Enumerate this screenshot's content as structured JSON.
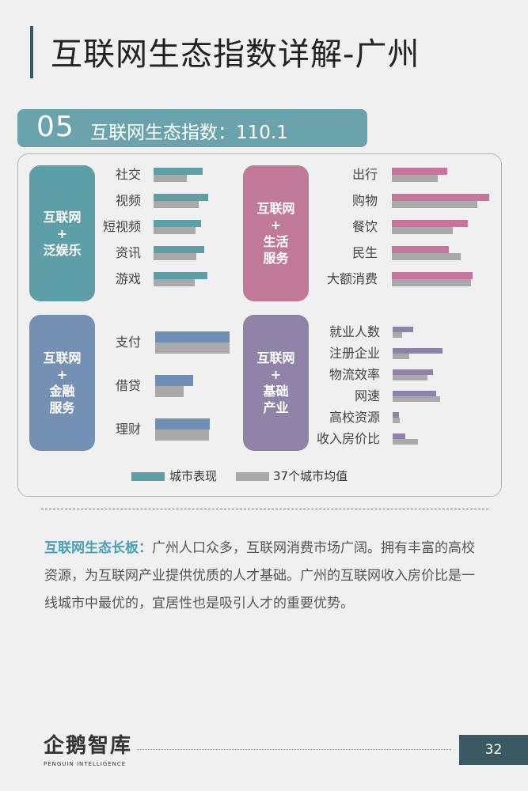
{
  "page_title": "互联网生态指数详解-广州",
  "banner": {
    "number": "05",
    "text": "互联网生态指数：110.1"
  },
  "colors": {
    "city": "#5e9ea6",
    "average": "#a9a9a9",
    "ent_bar": "#5e9ea6",
    "life_bar": "#c7759a",
    "fin_bar": "#6e8fb3",
    "infra_bar": "#8c82aa"
  },
  "chart_data": [
    {
      "type": "bar",
      "orientation": "horizontal",
      "group": [
        "互联网",
        "+",
        "泛娱乐"
      ],
      "categories": [
        "社交",
        "视频",
        "短视频",
        "资讯",
        "游戏"
      ],
      "series": [
        {
          "name": "城市表现",
          "values": [
            62,
            69,
            60,
            64,
            68
          ]
        },
        {
          "name": "37个城市均值",
          "values": [
            42,
            57,
            53,
            54,
            52
          ]
        }
      ]
    },
    {
      "type": "bar",
      "orientation": "horizontal",
      "group": [
        "互联网",
        "+",
        "生活",
        "服务"
      ],
      "categories": [
        "出行",
        "购物",
        "餐饮",
        "民生",
        "大额消费"
      ],
      "series": [
        {
          "name": "城市表现",
          "values": [
            70,
            123,
            96,
            72,
            102
          ]
        },
        {
          "name": "37个城市均值",
          "values": [
            58,
            108,
            77,
            87,
            100
          ]
        }
      ]
    },
    {
      "type": "bar",
      "orientation": "horizontal",
      "group": [
        "互联网",
        "+",
        "金融",
        "服务"
      ],
      "categories": [
        "支付",
        "借贷",
        "理财"
      ],
      "series": [
        {
          "name": "城市表现",
          "values": [
            94,
            48,
            69
          ]
        },
        {
          "name": "37个城市均值",
          "values": [
            94,
            36,
            68
          ]
        }
      ]
    },
    {
      "type": "bar",
      "orientation": "horizontal",
      "group": [
        "互联网",
        "+",
        "基础",
        "产业"
      ],
      "categories": [
        "就业人数",
        "注册企业",
        "物流效率",
        "网速",
        "高校资源",
        "收入房价比"
      ],
      "series": [
        {
          "name": "城市表现",
          "values": [
            26,
            63,
            51,
            55,
            8,
            16
          ]
        },
        {
          "name": "37个城市均值",
          "values": [
            12,
            21,
            44,
            60,
            9,
            32
          ]
        }
      ]
    }
  ],
  "legend": {
    "city": "城市表现",
    "average": "37个城市均值"
  },
  "description": {
    "highlight": "互联网生态长板：",
    "body": "广州人口众多，互联网消费市场广阔。拥有丰富的高校资源，为互联网产业提供优质的人才基础。广州的互联网收入房价比是一线城市中最优的，宜居性也是吸引人才的重要优势。"
  },
  "footer": {
    "logo_main": "企鹅智库",
    "logo_sub": "PENGUIN INTELLIGENCE",
    "page_number": "32"
  }
}
